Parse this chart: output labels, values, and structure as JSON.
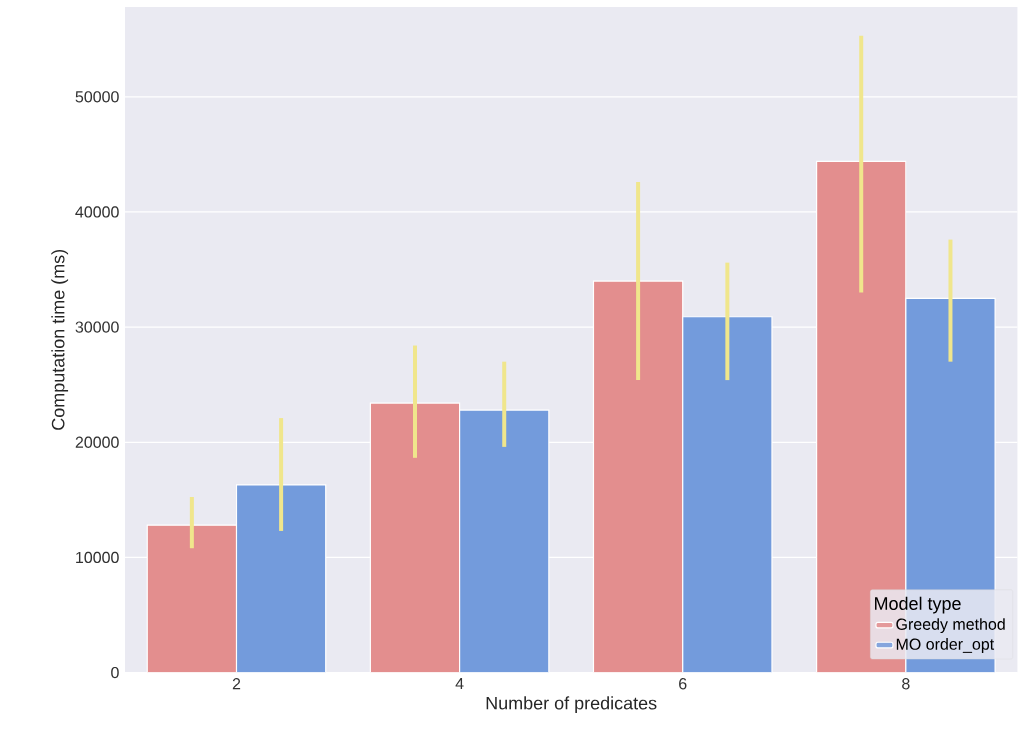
{
  "chart_data": {
    "type": "bar",
    "xlabel": "Number of predicates",
    "ylabel": "Computation time (ms)",
    "legend_title": "Model type",
    "categories": [
      "2",
      "4",
      "6",
      "8"
    ],
    "series": [
      {
        "name": "Greedy method",
        "color": "#e38e8e",
        "values": [
          12800,
          23400,
          34000,
          44400
        ],
        "errors": [
          [
            10800,
            15250
          ],
          [
            18650,
            28400
          ],
          [
            25400,
            42600
          ],
          [
            33000,
            55300
          ]
        ]
      },
      {
        "name": "MO order_opt",
        "color": "#739bdc",
        "values": [
          16300,
          22800,
          30900,
          32500
        ],
        "errors": [
          [
            12300,
            22100
          ],
          [
            19600,
            27000
          ],
          [
            25400,
            35600
          ],
          [
            27000,
            37600
          ]
        ]
      }
    ],
    "ylim": [
      0,
      57800
    ],
    "yticks": [
      0,
      10000,
      20000,
      30000,
      40000,
      50000
    ],
    "grid": "y",
    "legend": "bottom right"
  }
}
